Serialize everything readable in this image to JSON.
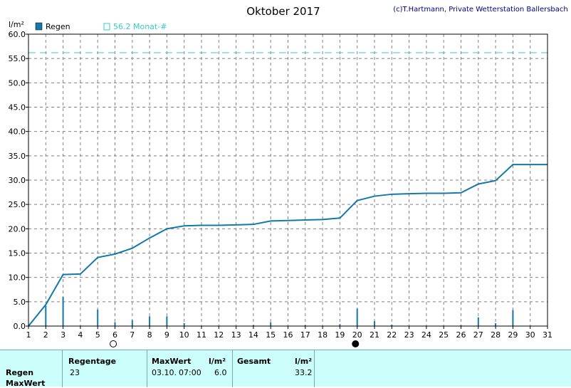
{
  "header": {
    "title": "Oktober 2017",
    "credit": "(c)T.Hartmann, Private Wetterstation Ballersbach",
    "unit": "l/m²"
  },
  "legend": {
    "rain_label": "Regen",
    "monthly_label": "56.2 Monat-#"
  },
  "colors": {
    "series": "#1478a8",
    "reference": "#33cccc",
    "grid": "#808080",
    "stats_bg": "#ccfefc"
  },
  "chart_data": {
    "type": "bar",
    "title": "Oktober 2017",
    "ylabel": "l/m²",
    "ylim": [
      0,
      60
    ],
    "xlim": [
      1,
      31
    ],
    "yticks": [
      "0.0",
      "5.0",
      "10.0",
      "15.0",
      "20.0",
      "25.0",
      "30.0",
      "35.0",
      "40.0",
      "45.0",
      "50.0",
      "55.0",
      "60.0"
    ],
    "xticks": [
      "1",
      "2",
      "3",
      "4",
      "5",
      "6",
      "7",
      "8",
      "9",
      "10",
      "11",
      "12",
      "13",
      "14",
      "15",
      "16",
      "17",
      "18",
      "19",
      "20",
      "21",
      "22",
      "23",
      "24",
      "25",
      "26",
      "27",
      "28",
      "29",
      "30",
      "31"
    ],
    "grid": true,
    "reference_line": 56.2,
    "series": [
      {
        "name": "Regen",
        "type": "bar",
        "x": [
          2,
          3,
          5,
          6,
          7,
          8,
          9,
          10,
          14,
          15,
          17,
          19,
          20,
          21,
          22,
          26,
          27,
          28,
          29
        ],
        "values": [
          4.2,
          6.0,
          3.4,
          0.8,
          1.2,
          2.0,
          2.0,
          0.6,
          0.2,
          0.8,
          0.2,
          0.4,
          3.6,
          1.0,
          0.3,
          0.2,
          1.8,
          0.6,
          3.3
        ]
      },
      {
        "type": "line",
        "x": [
          1,
          2,
          3,
          4,
          5,
          6,
          7,
          8,
          9,
          10,
          11,
          12,
          13,
          14,
          15,
          16,
          17,
          18,
          19,
          20,
          21,
          22,
          23,
          24,
          25,
          26,
          27,
          28,
          29,
          30,
          31
        ],
        "values": [
          0.0,
          4.4,
          10.6,
          10.7,
          14.1,
          14.8,
          16.0,
          18.1,
          20.0,
          20.6,
          20.7,
          20.7,
          20.8,
          20.9,
          21.6,
          21.7,
          21.8,
          21.9,
          22.2,
          25.8,
          26.7,
          27.1,
          27.2,
          27.3,
          27.3,
          27.4,
          29.2,
          29.9,
          33.2,
          33.2,
          33.2
        ]
      }
    ],
    "moon_phases": [
      {
        "day": 5.9,
        "phase": "full"
      },
      {
        "day": 19.9,
        "phase": "new"
      }
    ]
  },
  "stats": {
    "row_labels": [
      "Regen",
      "MaxWert"
    ],
    "regentage_label": "Regentage",
    "regentage_value": "23",
    "maxwert_label": "MaxWert",
    "maxwert_unit": "l/m²",
    "maxwert_date": "03.10.",
    "maxwert_time": "07:00",
    "maxwert_value": "6.0",
    "gesamt_label": "Gesamt",
    "gesamt_unit": "l/m²",
    "gesamt_value": "33.2"
  }
}
